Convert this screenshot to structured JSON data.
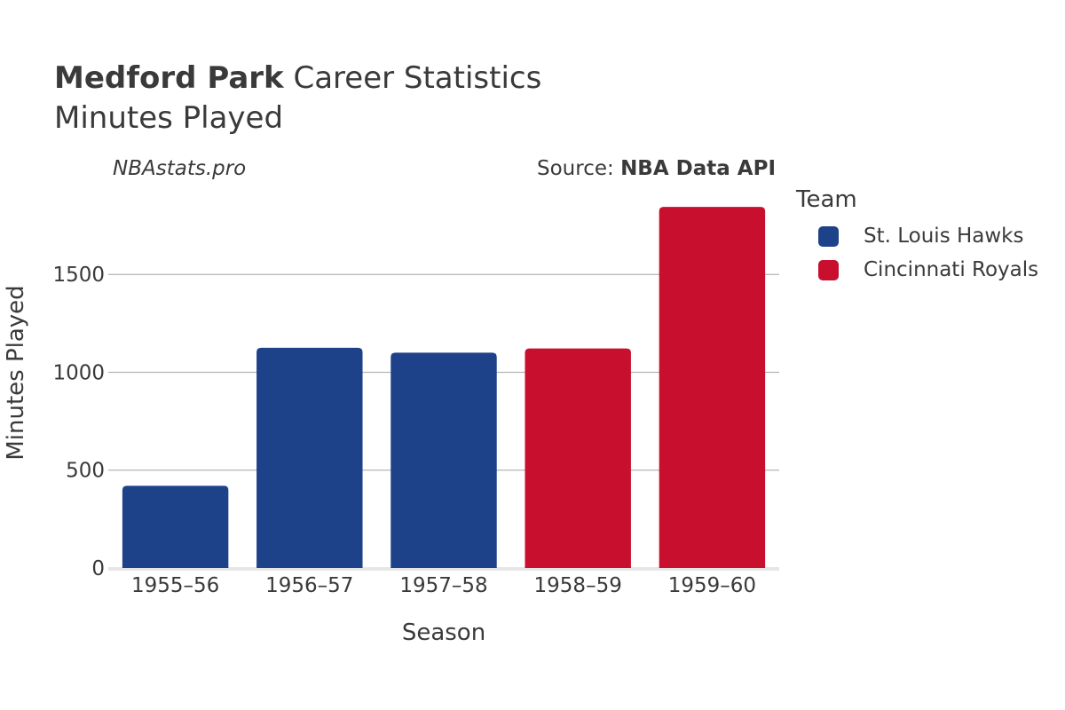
{
  "header": {
    "player_name": "Medford Park",
    "title_rest": "Career Statistics",
    "subtitle": "Minutes Played",
    "credit": "NBAstats.pro",
    "source_prefix": "Source: ",
    "source_name": "NBA Data API"
  },
  "legend": {
    "title": "Team",
    "items": [
      {
        "label": "St. Louis Hawks",
        "color": "#1d428a"
      },
      {
        "label": "Cincinnati Royals",
        "color": "#c8102e"
      }
    ]
  },
  "chart_data": {
    "type": "bar",
    "title": "Medford Park Career Statistics",
    "subtitle": "Minutes Played",
    "xlabel": "Season",
    "ylabel": "Minutes Played",
    "categories": [
      "1955–56",
      "1956–57",
      "1957–58",
      "1958–59",
      "1959–60"
    ],
    "values": [
      420,
      1125,
      1100,
      1122,
      1845
    ],
    "teams": [
      "St. Louis Hawks",
      "St. Louis Hawks",
      "St. Louis Hawks",
      "Cincinnati Royals",
      "Cincinnati Royals"
    ],
    "colors": [
      "#1d428a",
      "#1d428a",
      "#1d428a",
      "#c8102e",
      "#c8102e"
    ],
    "yticks": [
      0,
      500,
      1000,
      1500
    ],
    "ytick_labels": [
      "0",
      "500",
      "1000",
      "1500"
    ],
    "ylim": [
      0,
      1950
    ],
    "grid": true,
    "legend_position": "right"
  }
}
